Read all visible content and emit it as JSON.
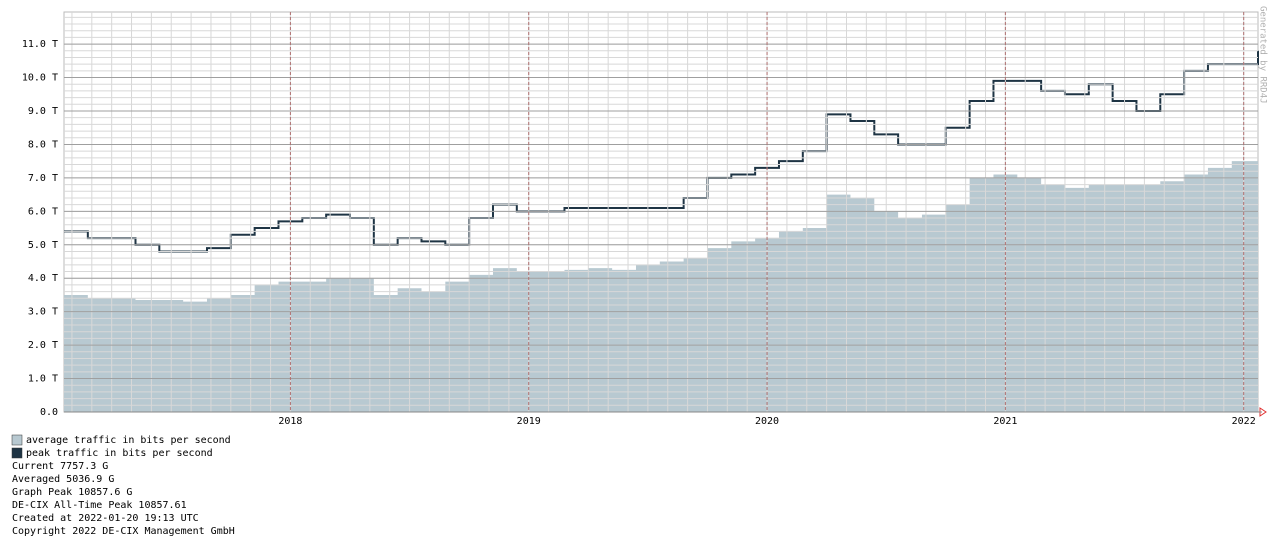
{
  "chart_data": {
    "type": "area",
    "x": [
      2017.05,
      2017.15,
      2017.25,
      2017.35,
      2017.45,
      2017.55,
      2017.65,
      2017.75,
      2017.85,
      2017.95,
      2018.05,
      2018.15,
      2018.25,
      2018.35,
      2018.45,
      2018.55,
      2018.65,
      2018.75,
      2018.85,
      2018.95,
      2019.05,
      2019.15,
      2019.25,
      2019.35,
      2019.45,
      2019.55,
      2019.65,
      2019.75,
      2019.85,
      2019.95,
      2020.05,
      2020.15,
      2020.25,
      2020.35,
      2020.45,
      2020.55,
      2020.65,
      2020.75,
      2020.85,
      2020.95,
      2021.05,
      2021.15,
      2021.25,
      2021.35,
      2021.45,
      2021.55,
      2021.65,
      2021.75,
      2021.85,
      2021.95,
      2022.06
    ],
    "series": [
      {
        "name": "average traffic in bits per second",
        "color": "#b8c9d1",
        "values": [
          3.5,
          3.4,
          3.4,
          3.35,
          3.35,
          3.3,
          3.4,
          3.5,
          3.8,
          3.9,
          3.9,
          4.0,
          4.0,
          3.5,
          3.7,
          3.6,
          3.9,
          4.1,
          4.3,
          4.2,
          4.2,
          4.25,
          4.3,
          4.25,
          4.4,
          4.5,
          4.6,
          4.9,
          5.1,
          5.2,
          5.4,
          5.5,
          6.5,
          6.4,
          6.0,
          5.8,
          5.9,
          6.2,
          7.0,
          7.1,
          7.0,
          6.8,
          6.7,
          6.8,
          6.8,
          6.8,
          6.9,
          7.1,
          7.3,
          7.5,
          7.75
        ]
      },
      {
        "name": "peak traffic in bits per second",
        "color": "#1e3444",
        "values": [
          5.4,
          5.2,
          5.2,
          5.0,
          4.8,
          4.8,
          4.9,
          5.3,
          5.5,
          5.7,
          5.8,
          5.9,
          5.8,
          5.0,
          5.2,
          5.1,
          5.0,
          5.8,
          6.2,
          6.0,
          6.0,
          6.1,
          6.1,
          6.1,
          6.1,
          6.1,
          6.4,
          7.0,
          7.1,
          7.3,
          7.5,
          7.8,
          8.9,
          8.7,
          8.3,
          8.0,
          8.0,
          8.5,
          9.3,
          9.9,
          9.9,
          9.6,
          9.5,
          9.8,
          9.3,
          9.0,
          9.5,
          10.2,
          10.4,
          10.4,
          10.8
        ]
      }
    ],
    "xlim": [
      2017.05,
      2022.06
    ],
    "xticks": [
      2018,
      2019,
      2020,
      2021,
      2022
    ],
    "ylim": [
      0,
      11.96
    ],
    "yticks": [
      {
        "value": 0,
        "label": "0.0"
      },
      {
        "value": 1,
        "label": "1.0 T"
      },
      {
        "value": 2,
        "label": "2.0 T"
      },
      {
        "value": 3,
        "label": "3.0 T"
      },
      {
        "value": 4,
        "label": "4.0 T"
      },
      {
        "value": 5,
        "label": "5.0 T"
      },
      {
        "value": 6,
        "label": "6.0 T"
      },
      {
        "value": 7,
        "label": "7.0 T"
      },
      {
        "value": 8,
        "label": "8.0 T"
      },
      {
        "value": 9,
        "label": "9.0 T"
      },
      {
        "value": 10,
        "label": "10.0 T"
      },
      {
        "value": 11,
        "label": "11.0 T"
      }
    ],
    "grid": true,
    "notes": [
      "Current 7757.3 G",
      "Averaged 5036.9 G",
      "Graph Peak 10857.6 G",
      "DE-CIX All-Time Peak 10857.61",
      "Created at 2022-01-20 19:13 UTC",
      "Copyright 2022 DE-CIX Management GmbH"
    ],
    "watermark": "Generated by RRD4J"
  }
}
